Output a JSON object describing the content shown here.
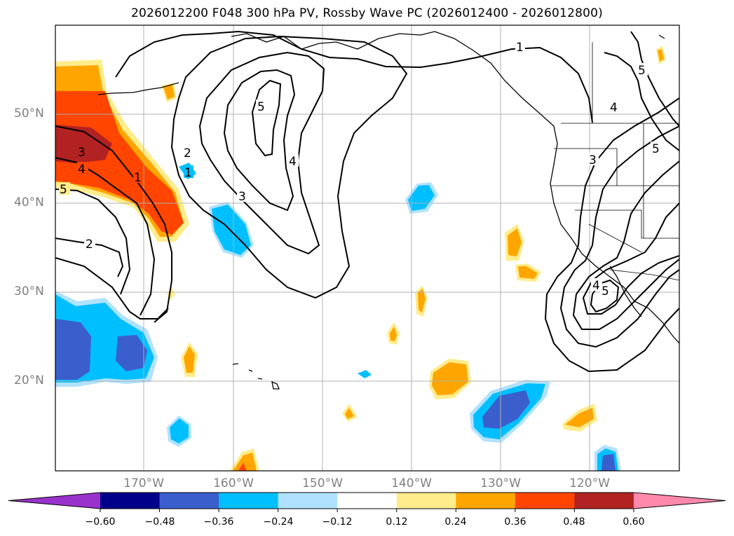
{
  "title": "2026012200 F048 300 hPa PV, Rossby Wave PC (2026012400 - 2026012800)",
  "map": {
    "lat_labels": [
      "50°N",
      "40°N",
      "30°N",
      "20°N"
    ],
    "lon_labels": [
      "170°W",
      "160°W",
      "150°W",
      "140°W",
      "130°W",
      "120°W"
    ],
    "contour_labels": [
      "1",
      "2",
      "3",
      "4",
      "5"
    ]
  },
  "colorbar": {
    "ticks": [
      "−0.60",
      "−0.48",
      "−0.36",
      "−0.24",
      "−0.12",
      "0.12",
      "0.24",
      "0.36",
      "0.48",
      "0.60"
    ],
    "colors": [
      "#9932cc",
      "#00008b",
      "#3a5fcd",
      "#00bfff",
      "#b0e2ff",
      "#ffffff",
      "#ffec8b",
      "#ffa500",
      "#ff4500",
      "#b22222",
      "#ff89ac"
    ]
  }
}
